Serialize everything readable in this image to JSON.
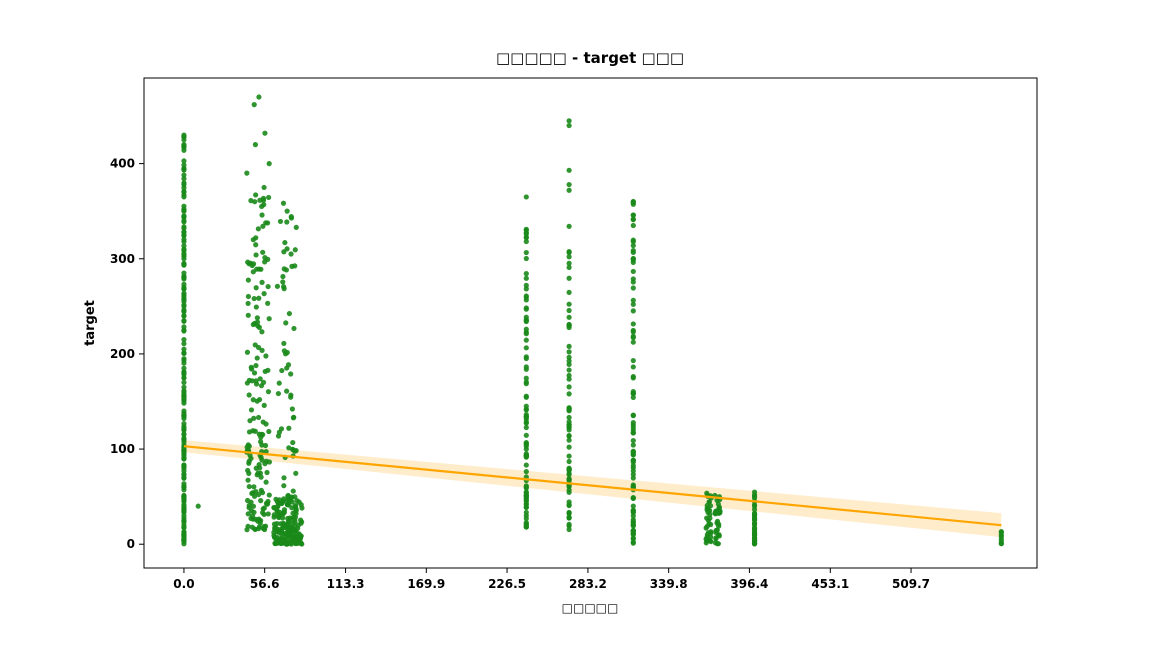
{
  "chart_data": {
    "type": "scatter",
    "title": "□□□□□ - target □□□",
    "xlabel": "□□□□□",
    "ylabel": "target",
    "xlim": [
      -28.0,
      598.0
    ],
    "ylim": [
      -25,
      490
    ],
    "x_ticks": [
      "0.0",
      "56.6",
      "113.3",
      "169.9",
      "226.5",
      "283.2",
      "339.8",
      "396.4",
      "453.1",
      "509.7"
    ],
    "y_ticks": [
      "0",
      "100",
      "200",
      "300",
      "400"
    ],
    "point_color": "#1a8a1a",
    "regression": {
      "color": "#ffa500",
      "band_color": "#ffe9c2",
      "x": [
        0,
        573
      ],
      "y": [
        103,
        20
      ],
      "band_halfwidth_start": 6,
      "band_halfwidth_end": 12
    },
    "clusters": [
      {
        "x": 0.0,
        "jitter": 0,
        "ymin": 0,
        "ymax": 430,
        "n": 150,
        "extra_y": [
          430,
          425,
          418,
          395,
          388,
          370,
          365,
          350,
          340,
          332,
          325,
          318,
          310,
          300,
          295,
          285,
          270,
          260,
          255,
          250,
          240,
          235,
          225,
          215,
          205,
          195,
          185,
          170,
          165,
          155,
          140,
          135,
          120,
          110,
          100,
          90,
          80,
          70,
          60,
          50,
          40,
          30,
          20,
          10,
          5
        ]
      },
      {
        "x": 10.0,
        "jitter": 0,
        "ymin": 40,
        "ymax": 40,
        "n": 1
      },
      {
        "x": 52.0,
        "jitter": 8,
        "ymin": 15,
        "ymax": 375,
        "n": 170,
        "extra_y": [
          470,
          462,
          432,
          420,
          400,
          390,
          375,
          360,
          355
        ]
      },
      {
        "x": 73.0,
        "jitter": 10,
        "ymin": 0,
        "ymax": 50,
        "n": 170
      },
      {
        "x": 72.0,
        "jitter": 7,
        "ymin": 0,
        "ymax": 360,
        "n": 70
      },
      {
        "x": 240.0,
        "jitter": 0,
        "ymin": 17,
        "ymax": 340,
        "n": 90,
        "extra_y": [
          365
        ]
      },
      {
        "x": 270.0,
        "jitter": 0,
        "ymin": 15,
        "ymax": 335,
        "n": 75,
        "extra_y": [
          445,
          440,
          393,
          378,
          372
        ]
      },
      {
        "x": 315.0,
        "jitter": 0,
        "ymin": 0,
        "ymax": 370,
        "n": 95
      },
      {
        "x": 368.0,
        "jitter": 2,
        "ymin": 0,
        "ymax": 55,
        "n": 35
      },
      {
        "x": 374.0,
        "jitter": 2,
        "ymin": 0,
        "ymax": 55,
        "n": 35
      },
      {
        "x": 400.0,
        "jitter": 0,
        "ymin": 0,
        "ymax": 55,
        "n": 45
      },
      {
        "x": 573.0,
        "jitter": 0,
        "ymin": 0,
        "ymax": 15,
        "n": 8
      }
    ]
  }
}
